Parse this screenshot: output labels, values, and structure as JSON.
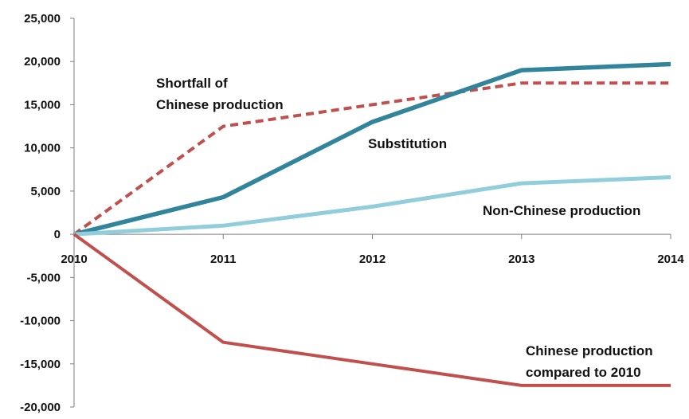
{
  "chart_data": {
    "type": "line",
    "title": "",
    "xlabel": "",
    "ylabel": "",
    "x": [
      "2010",
      "2011",
      "2012",
      "2013",
      "2014"
    ],
    "ylim": [
      -20000,
      25000
    ],
    "yticks": [
      "25,000",
      "20,000",
      "15,000",
      "10,000",
      "5,000",
      "0",
      "-5,000",
      "-10,000",
      "-15,000",
      "-20,000"
    ],
    "ytick_values": [
      25000,
      20000,
      15000,
      10000,
      5000,
      0,
      -5000,
      -10000,
      -15000,
      -20000
    ],
    "grid": false,
    "series": [
      {
        "key": "shortfall",
        "values": [
          0,
          12500,
          15000,
          17500,
          17500
        ],
        "color": "#c0504d",
        "dashed": true
      },
      {
        "key": "substitution",
        "values": [
          0,
          4300,
          13000,
          19000,
          19700
        ],
        "color": "#31849b",
        "dashed": false
      },
      {
        "key": "non_chinese",
        "values": [
          0,
          1000,
          3200,
          5900,
          6600
        ],
        "color": "#92cddc",
        "dashed": false
      },
      {
        "key": "chinese_vs_2010",
        "values": [
          0,
          -12500,
          -15000,
          -17500,
          -17500
        ],
        "color": "#c0504d",
        "dashed": false
      }
    ],
    "annotations": {
      "shortfall": [
        "Shortfall of",
        "Chinese production"
      ],
      "substitution": [
        "Substitution"
      ],
      "non_chinese": [
        "Non-Chinese production"
      ],
      "chinese_vs_2010": [
        "Chinese production",
        "compared to 2010"
      ]
    }
  }
}
